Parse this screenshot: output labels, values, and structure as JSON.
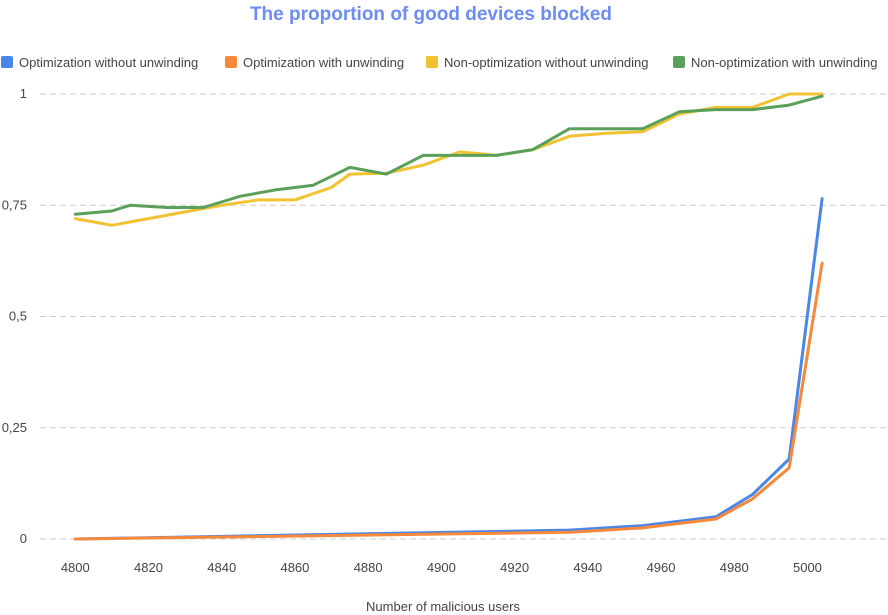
{
  "chart_data": {
    "type": "line",
    "title": "The proportion of good devices blocked",
    "xlabel": "Number of malicious users",
    "ylabel": "",
    "xlim": [
      4792,
      5022
    ],
    "ylim": [
      0,
      1
    ],
    "x_ticks": [
      4800,
      4820,
      4840,
      4860,
      4880,
      4900,
      4920,
      4940,
      4960,
      4980,
      5000
    ],
    "y_ticks": [
      {
        "value": 0,
        "label": "0"
      },
      {
        "value": 0.25,
        "label": "0,25"
      },
      {
        "value": 0.5,
        "label": "0,5"
      },
      {
        "value": 0.75,
        "label": "0,75"
      },
      {
        "value": 1,
        "label": "1"
      }
    ],
    "grid": true,
    "legend_position": "top",
    "series": [
      {
        "name": "Optimization without unwinding",
        "color": "#4a86e8",
        "x": [
          4800,
          4935,
          4945,
          4955,
          4965,
          4975,
          4985,
          4995,
          5004
        ],
        "y": [
          0.0,
          0.02,
          0.025,
          0.03,
          0.04,
          0.05,
          0.1,
          0.18,
          0.765
        ]
      },
      {
        "name": "Optimization with unwinding",
        "color": "#f6893b",
        "x": [
          4800,
          4935,
          4945,
          4955,
          4965,
          4975,
          4985,
          4995,
          5004
        ],
        "y": [
          0.0,
          0.015,
          0.02,
          0.025,
          0.035,
          0.045,
          0.09,
          0.16,
          0.62
        ]
      },
      {
        "name": "Non-optimization without unwinding",
        "color": "#f1c232",
        "x": [
          4800,
          4810,
          4820,
          4830,
          4840,
          4850,
          4860,
          4870,
          4875,
          4885,
          4895,
          4905,
          4915,
          4925,
          4935,
          4945,
          4955,
          4965,
          4975,
          4985,
          4995,
          5004
        ],
        "y": [
          0.72,
          0.705,
          0.72,
          0.735,
          0.75,
          0.762,
          0.762,
          0.79,
          0.82,
          0.822,
          0.84,
          0.87,
          0.862,
          0.875,
          0.905,
          0.912,
          0.915,
          0.955,
          0.97,
          0.97,
          1.0,
          1.0
        ]
      },
      {
        "name": "Non-optimization with unwinding",
        "color": "#5aa05a",
        "x": [
          4800,
          4810,
          4815,
          4825,
          4835,
          4845,
          4855,
          4865,
          4875,
          4885,
          4895,
          4905,
          4915,
          4925,
          4935,
          4945,
          4955,
          4965,
          4975,
          4985,
          4995,
          5004
        ],
        "y": [
          0.73,
          0.737,
          0.75,
          0.745,
          0.745,
          0.77,
          0.785,
          0.795,
          0.835,
          0.82,
          0.862,
          0.862,
          0.862,
          0.875,
          0.922,
          0.922,
          0.922,
          0.96,
          0.965,
          0.965,
          0.975,
          0.995
        ]
      }
    ]
  }
}
